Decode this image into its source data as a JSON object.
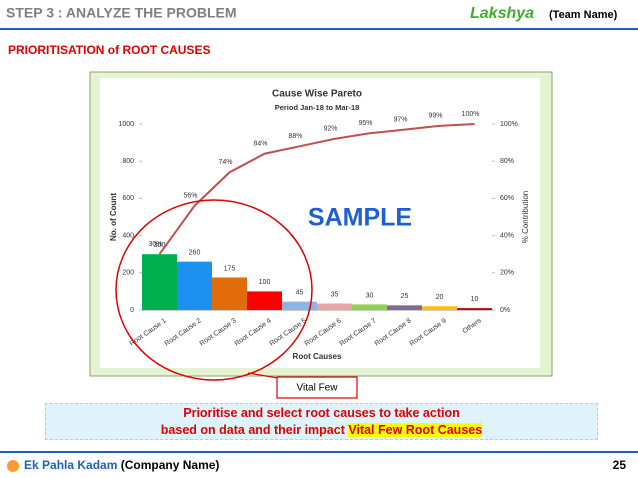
{
  "header": {
    "title": "STEP 3 : ANALYZE THE PROBLEM",
    "logo": "Lakshya",
    "team": "(Team Name)"
  },
  "subtitle": "PRIORITISATION of ROOT CAUSES",
  "chart_data": {
    "type": "pareto",
    "title": "Cause Wise Pareto",
    "subtitle": "Period Jan-18 to Mar-18",
    "x_label": "Root Causes",
    "y_label": "No. of Count",
    "y2_label": "% Contribution",
    "categories": [
      "Root Cause 1",
      "Root Cause 2",
      "Root Cause 3",
      "Root Cause 4",
      "Root Cause 5",
      "Root Cause 6",
      "Root Cause 7",
      "Root Cause 8",
      "Root Cause 9",
      "Others"
    ],
    "series": [
      {
        "type": "bar",
        "values": [
          300,
          260,
          175,
          100,
          45,
          35,
          30,
          25,
          20,
          10
        ],
        "colors": [
          "#00b050",
          "#1e90f0",
          "#e36c0a",
          "#ff0000",
          "#8db4e2",
          "#e6a6a6",
          "#92d050",
          "#7f6b8f",
          "#ffc000",
          "#c00000"
        ]
      },
      {
        "type": "line",
        "axis": "y2",
        "color": "#c0504d",
        "values": [
          30,
          56,
          74,
          84,
          88,
          92,
          95,
          97,
          99,
          100
        ],
        "value_labels": [
          "30%",
          "56%",
          "74%",
          "84%",
          "88%",
          "92%",
          "95%",
          "97%",
          "99%",
          "100%"
        ]
      }
    ],
    "ylim": [
      0,
      1000
    ],
    "yticks": [
      0,
      200,
      400,
      600,
      800,
      1000
    ],
    "y2lim": [
      0,
      100
    ],
    "y2ticks": [
      {
        "value": 0,
        "label": "0%"
      },
      {
        "value": 20,
        "label": "20%"
      },
      {
        "value": 40,
        "label": "40%"
      },
      {
        "value": 60,
        "label": "60%"
      },
      {
        "value": 80,
        "label": "80%"
      },
      {
        "value": 100,
        "label": "100%"
      }
    ],
    "grid": false,
    "annotations": [
      "SAMPLE",
      "Vital Few"
    ]
  },
  "banner": {
    "line1": "Prioritise and select root causes to take action",
    "line2": "based on data and their impact ",
    "highlight": "Vital Few Root Causes"
  },
  "footer": {
    "company": "Ek Pahla Kadam",
    "company_note": "(Company Name)",
    "page": "25"
  }
}
